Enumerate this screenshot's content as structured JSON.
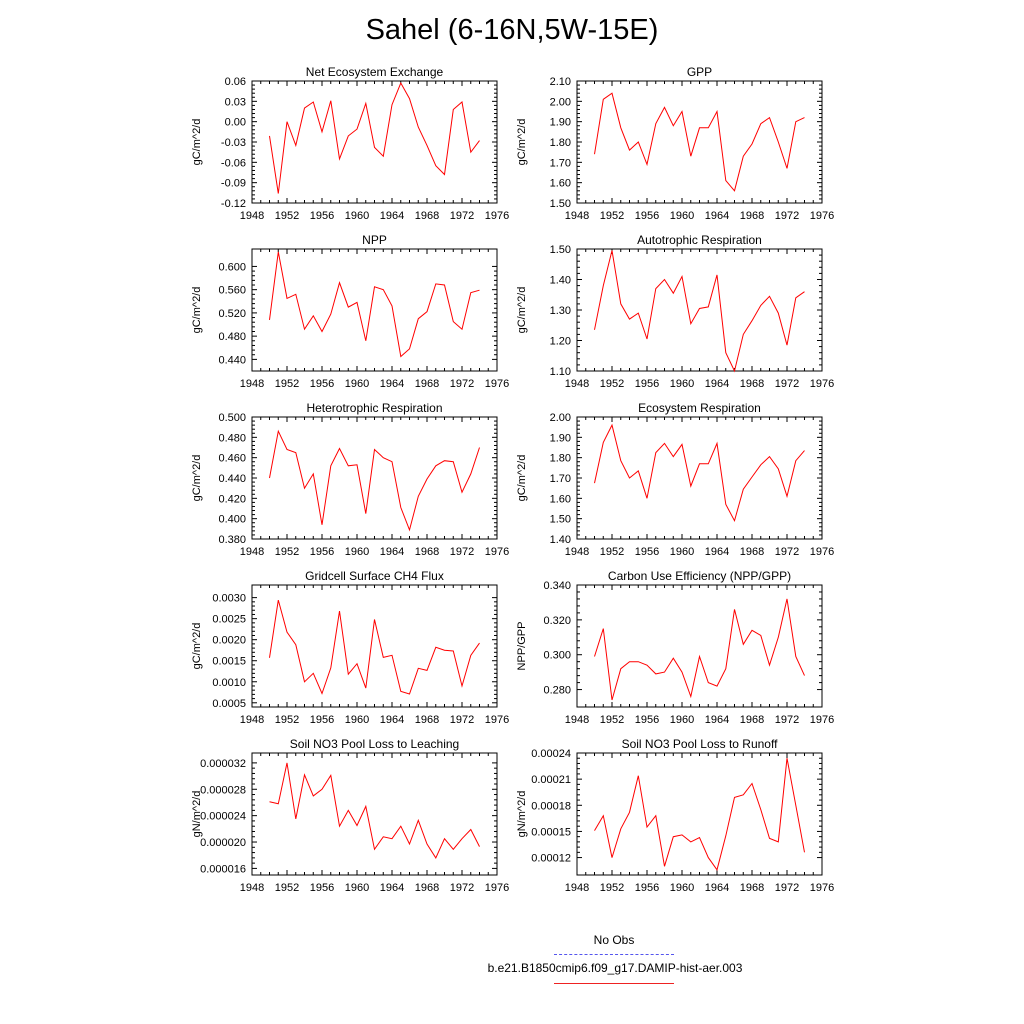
{
  "title": "Sahel (6-16N,5W-15E)",
  "colors": {
    "series": "#ff0000",
    "obs": "#5555ee",
    "axis": "#000000"
  },
  "legend": {
    "obs_label": "No Obs",
    "model_label": "b.e21.B1850cmip6.f09_g17.DAMIP-hist-aer.003"
  },
  "chart_data": [
    {
      "type": "line",
      "title": "Net Ecosystem Exchange",
      "xlabel": "",
      "ylabel": "gC/m^2/d",
      "xlim": [
        1948,
        1976
      ],
      "xticks": [
        "1948",
        "1952",
        "1956",
        "1960",
        "1964",
        "1968",
        "1972",
        "1976"
      ],
      "ylim": [
        -0.12,
        0.06
      ],
      "yticks": [
        "-0.12",
        "-0.09",
        "-0.06",
        "-0.03",
        "0.00",
        "0.03",
        "0.06"
      ],
      "series": [
        {
          "color": "#ff0000",
          "x": [
            1950,
            1951,
            1952,
            1953,
            1954,
            1955,
            1956,
            1957,
            1958,
            1959,
            1960,
            1961,
            1962,
            1963,
            1964,
            1965,
            1966,
            1967,
            1968,
            1969,
            1970,
            1971,
            1972,
            1973,
            1974
          ],
          "y": [
            -0.021,
            -0.106,
            0.0,
            -0.035,
            0.02,
            0.029,
            -0.015,
            0.031,
            -0.055,
            -0.021,
            -0.011,
            0.027,
            -0.038,
            -0.051,
            0.025,
            0.057,
            0.034,
            -0.008,
            -0.035,
            -0.065,
            -0.078,
            0.018,
            0.029,
            -0.045,
            -0.028
          ]
        }
      ]
    },
    {
      "type": "line",
      "title": "GPP",
      "xlabel": "",
      "ylabel": "gC/m^2/d",
      "xlim": [
        1948,
        1976
      ],
      "xticks": [
        "1948",
        "1952",
        "1956",
        "1960",
        "1964",
        "1968",
        "1972",
        "1976"
      ],
      "ylim": [
        1.5,
        2.1
      ],
      "yticks": [
        "1.50",
        "1.60",
        "1.70",
        "1.80",
        "1.90",
        "2.00",
        "2.10"
      ],
      "series": [
        {
          "color": "#ff0000",
          "x": [
            1950,
            1951,
            1952,
            1953,
            1954,
            1955,
            1956,
            1957,
            1958,
            1959,
            1960,
            1961,
            1962,
            1963,
            1964,
            1965,
            1966,
            1967,
            1968,
            1969,
            1970,
            1971,
            1972,
            1973,
            1974
          ],
          "y": [
            1.74,
            2.01,
            2.04,
            1.87,
            1.76,
            1.8,
            1.69,
            1.89,
            1.97,
            1.88,
            1.95,
            1.73,
            1.87,
            1.87,
            1.95,
            1.61,
            1.56,
            1.73,
            1.79,
            1.89,
            1.92,
            1.8,
            1.67,
            1.9,
            1.92
          ]
        }
      ]
    },
    {
      "type": "line",
      "title": "NPP",
      "xlabel": "",
      "ylabel": "gC/m^2/d",
      "xlim": [
        1948,
        1976
      ],
      "xticks": [
        "1948",
        "1952",
        "1956",
        "1960",
        "1964",
        "1968",
        "1972",
        "1976"
      ],
      "ylim": [
        0.42,
        0.63
      ],
      "yticks": [
        "0.440",
        "0.480",
        "0.520",
        "0.560",
        "0.600"
      ],
      "series": [
        {
          "color": "#ff0000",
          "x": [
            1950,
            1951,
            1952,
            1953,
            1954,
            1955,
            1956,
            1957,
            1958,
            1959,
            1960,
            1961,
            1962,
            1963,
            1964,
            1965,
            1966,
            1967,
            1968,
            1969,
            1970,
            1971,
            1972,
            1973,
            1974
          ],
          "y": [
            0.508,
            0.625,
            0.545,
            0.552,
            0.492,
            0.515,
            0.488,
            0.518,
            0.572,
            0.53,
            0.538,
            0.472,
            0.565,
            0.56,
            0.532,
            0.445,
            0.458,
            0.51,
            0.522,
            0.57,
            0.568,
            0.505,
            0.492,
            0.555,
            0.559
          ]
        }
      ]
    },
    {
      "type": "line",
      "title": "Autotrophic Respiration",
      "xlabel": "",
      "ylabel": "gC/m^2/d",
      "xlim": [
        1948,
        1976
      ],
      "xticks": [
        "1948",
        "1952",
        "1956",
        "1960",
        "1964",
        "1968",
        "1972",
        "1976"
      ],
      "ylim": [
        1.1,
        1.5
      ],
      "yticks": [
        "1.10",
        "1.20",
        "1.30",
        "1.40",
        "1.50"
      ],
      "series": [
        {
          "color": "#ff0000",
          "x": [
            1950,
            1951,
            1952,
            1953,
            1954,
            1955,
            1956,
            1957,
            1958,
            1959,
            1960,
            1961,
            1962,
            1963,
            1964,
            1965,
            1966,
            1967,
            1968,
            1969,
            1970,
            1971,
            1972,
            1973,
            1974
          ],
          "y": [
            1.235,
            1.38,
            1.495,
            1.32,
            1.27,
            1.29,
            1.205,
            1.37,
            1.4,
            1.355,
            1.41,
            1.255,
            1.305,
            1.31,
            1.415,
            1.16,
            1.1,
            1.22,
            1.265,
            1.315,
            1.345,
            1.29,
            1.185,
            1.34,
            1.36
          ]
        }
      ]
    },
    {
      "type": "line",
      "title": "Heterotrophic Respiration",
      "xlabel": "",
      "ylabel": "gC/m^2/d",
      "xlim": [
        1948,
        1976
      ],
      "xticks": [
        "1948",
        "1952",
        "1956",
        "1960",
        "1964",
        "1968",
        "1972",
        "1976"
      ],
      "ylim": [
        0.38,
        0.5
      ],
      "yticks": [
        "0.380",
        "0.400",
        "0.420",
        "0.440",
        "0.460",
        "0.480",
        "0.500"
      ],
      "series": [
        {
          "color": "#ff0000",
          "x": [
            1950,
            1951,
            1952,
            1953,
            1954,
            1955,
            1956,
            1957,
            1958,
            1959,
            1960,
            1961,
            1962,
            1963,
            1964,
            1965,
            1966,
            1967,
            1968,
            1969,
            1970,
            1971,
            1972,
            1973,
            1974
          ],
          "y": [
            0.44,
            0.486,
            0.468,
            0.465,
            0.43,
            0.444,
            0.394,
            0.452,
            0.469,
            0.452,
            0.453,
            0.405,
            0.468,
            0.46,
            0.456,
            0.411,
            0.389,
            0.422,
            0.439,
            0.452,
            0.457,
            0.456,
            0.426,
            0.444,
            0.47
          ]
        }
      ]
    },
    {
      "type": "line",
      "title": "Ecosystem Respiration",
      "xlabel": "",
      "ylabel": "gC/m^2/d",
      "xlim": [
        1948,
        1976
      ],
      "xticks": [
        "1948",
        "1952",
        "1956",
        "1960",
        "1964",
        "1968",
        "1972",
        "1976"
      ],
      "ylim": [
        1.4,
        2.0
      ],
      "yticks": [
        "1.40",
        "1.50",
        "1.60",
        "1.70",
        "1.80",
        "1.90",
        "2.00"
      ],
      "series": [
        {
          "color": "#ff0000",
          "x": [
            1950,
            1951,
            1952,
            1953,
            1954,
            1955,
            1956,
            1957,
            1958,
            1959,
            1960,
            1961,
            1962,
            1963,
            1964,
            1965,
            1966,
            1967,
            1968,
            1969,
            1970,
            1971,
            1972,
            1973,
            1974
          ],
          "y": [
            1.675,
            1.875,
            1.96,
            1.785,
            1.7,
            1.735,
            1.6,
            1.825,
            1.87,
            1.805,
            1.865,
            1.66,
            1.77,
            1.77,
            1.87,
            1.57,
            1.49,
            1.645,
            1.705,
            1.765,
            1.805,
            1.745,
            1.61,
            1.785,
            1.835
          ]
        }
      ]
    },
    {
      "type": "line",
      "title": "Gridcell Surface CH4 Flux",
      "xlabel": "",
      "ylabel": "gC/m^2/d",
      "xlim": [
        1948,
        1976
      ],
      "xticks": [
        "1948",
        "1952",
        "1956",
        "1960",
        "1964",
        "1968",
        "1972",
        "1976"
      ],
      "ylim": [
        0.0004,
        0.0033
      ],
      "yticks": [
        "0.0005",
        "0.0010",
        "0.0015",
        "0.0020",
        "0.0025",
        "0.0030"
      ],
      "series": [
        {
          "color": "#ff0000",
          "x": [
            1950,
            1951,
            1952,
            1953,
            1954,
            1955,
            1956,
            1957,
            1958,
            1959,
            1960,
            1961,
            1962,
            1963,
            1964,
            1965,
            1966,
            1967,
            1968,
            1969,
            1970,
            1971,
            1972,
            1973,
            1974
          ],
          "y": [
            0.00157,
            0.00294,
            0.00218,
            0.00188,
            0.001,
            0.0012,
            0.00072,
            0.00133,
            0.00268,
            0.00118,
            0.00143,
            0.00085,
            0.00248,
            0.00158,
            0.00163,
            0.00077,
            0.00071,
            0.00132,
            0.00127,
            0.00182,
            0.00175,
            0.00173,
            0.0009,
            0.00163,
            0.00192
          ]
        }
      ]
    },
    {
      "type": "line",
      "title": "Carbon Use Efficiency (NPP/GPP)",
      "xlabel": "",
      "ylabel": "NPP/GPP",
      "xlim": [
        1948,
        1976
      ],
      "xticks": [
        "1948",
        "1952",
        "1956",
        "1960",
        "1964",
        "1968",
        "1972",
        "1976"
      ],
      "ylim": [
        0.27,
        0.34
      ],
      "yticks": [
        "0.280",
        "0.300",
        "0.320",
        "0.340"
      ],
      "series": [
        {
          "color": "#ff0000",
          "x": [
            1950,
            1951,
            1952,
            1953,
            1954,
            1955,
            1956,
            1957,
            1958,
            1959,
            1960,
            1961,
            1962,
            1963,
            1964,
            1965,
            1966,
            1967,
            1968,
            1969,
            1970,
            1971,
            1972,
            1973,
            1974
          ],
          "y": [
            0.299,
            0.315,
            0.274,
            0.292,
            0.296,
            0.296,
            0.294,
            0.289,
            0.29,
            0.298,
            0.29,
            0.276,
            0.299,
            0.284,
            0.282,
            0.292,
            0.326,
            0.306,
            0.314,
            0.311,
            0.294,
            0.31,
            0.332,
            0.299,
            0.288
          ]
        }
      ]
    },
    {
      "type": "line",
      "title": "Soil NO3 Pool Loss to Leaching",
      "xlabel": "",
      "ylabel": "gN/m^2/d",
      "xlim": [
        1948,
        1976
      ],
      "xticks": [
        "1948",
        "1952",
        "1956",
        "1960",
        "1964",
        "1968",
        "1972",
        "1976"
      ],
      "ylim": [
        1.5e-05,
        3.35e-05
      ],
      "yticks": [
        "0.000016",
        "0.000020",
        "0.000024",
        "0.000028",
        "0.000032"
      ],
      "series": [
        {
          "color": "#ff0000",
          "x": [
            1950,
            1951,
            1952,
            1953,
            1954,
            1955,
            1956,
            1957,
            1958,
            1959,
            1960,
            1961,
            1962,
            1963,
            1964,
            1965,
            1966,
            1967,
            1968,
            1969,
            1970,
            1971,
            1972,
            1973,
            1974
          ],
          "y": [
            2.61e-05,
            2.58e-05,
            3.2e-05,
            2.35e-05,
            3.02e-05,
            2.7e-05,
            2.8e-05,
            3.01e-05,
            2.24e-05,
            2.48e-05,
            2.25e-05,
            2.54e-05,
            1.89e-05,
            2.08e-05,
            2.05e-05,
            2.24e-05,
            1.97e-05,
            2.33e-05,
            1.97e-05,
            1.76e-05,
            2.05e-05,
            1.89e-05,
            2.05e-05,
            2.19e-05,
            1.93e-05
          ]
        }
      ]
    },
    {
      "type": "line",
      "title": "Soil NO3 Pool Loss to Runoff",
      "xlabel": "",
      "ylabel": "gN/m^2/d",
      "xlim": [
        1948,
        1976
      ],
      "xticks": [
        "1948",
        "1952",
        "1956",
        "1960",
        "1964",
        "1968",
        "1972",
        "1976"
      ],
      "ylim": [
        0.0001,
        0.00024
      ],
      "yticks": [
        "0.00012",
        "0.00015",
        "0.00018",
        "0.00021",
        "0.00024"
      ],
      "series": [
        {
          "color": "#ff0000",
          "x": [
            1950,
            1951,
            1952,
            1953,
            1954,
            1955,
            1956,
            1957,
            1958,
            1959,
            1960,
            1961,
            1962,
            1963,
            1964,
            1965,
            1966,
            1967,
            1968,
            1969,
            1970,
            1971,
            1972,
            1973,
            1974
          ],
          "y": [
            0.000151,
            0.000168,
            0.00012,
            0.000153,
            0.000172,
            0.000214,
            0.000155,
            0.000168,
            0.00011,
            0.000144,
            0.000146,
            0.000138,
            0.000143,
            0.00012,
            0.000106,
            0.000145,
            0.000189,
            0.000192,
            0.000205,
            0.000175,
            0.000142,
            0.000138,
            0.000234,
            0.00018,
            0.000126
          ]
        }
      ]
    }
  ]
}
